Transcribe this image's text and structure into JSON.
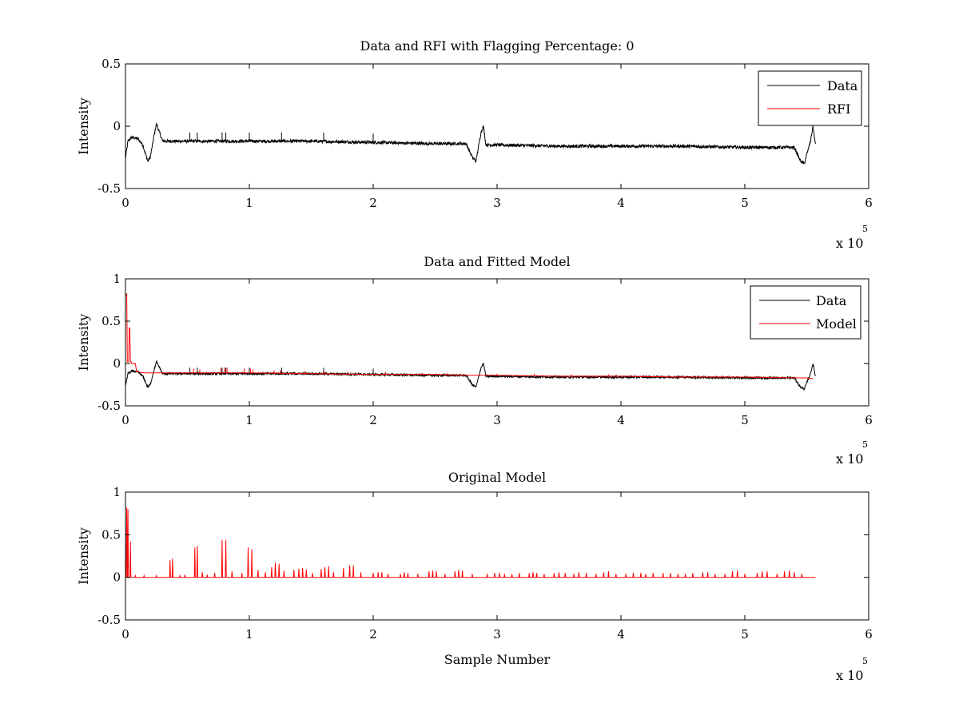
{
  "chart_data": [
    {
      "type": "line",
      "title": "Data and RFI with Flagging Percentage: 0",
      "xlabel": "",
      "ylabel": "Intensity",
      "xlim": [
        0,
        600000
      ],
      "ylim": [
        -0.5,
        0.5
      ],
      "xticks": [
        0,
        100000,
        200000,
        300000,
        400000,
        500000,
        600000
      ],
      "xtick_labels": [
        "0",
        "1",
        "2",
        "3",
        "4",
        "5",
        "6"
      ],
      "yticks": [
        -0.5,
        0,
        0.5
      ],
      "ytick_labels": [
        "-0.5",
        "0",
        "0.5"
      ],
      "x_multiplier": {
        "base": "x 10",
        "exponent": "5"
      },
      "grid": false,
      "legend": {
        "position": "top-right",
        "entries": [
          {
            "name": "Data",
            "color": "#000000"
          },
          {
            "name": "RFI",
            "color": "#ff0000"
          }
        ]
      },
      "series": [
        {
          "name": "Data",
          "color": "#000000",
          "x": [
            0,
            2000,
            5000,
            10000,
            14000,
            18000,
            20000,
            23000,
            25000,
            30000,
            60000,
            100000,
            150000,
            200000,
            250000,
            275000,
            280000,
            283000,
            287000,
            289000,
            291000,
            300000,
            350000,
            400000,
            450000,
            500000,
            540000,
            545000,
            548000,
            553000,
            555000,
            557000
          ],
          "y": [
            -0.26,
            -0.12,
            -0.09,
            -0.1,
            -0.15,
            -0.28,
            -0.25,
            -0.08,
            0.02,
            -0.12,
            -0.12,
            -0.12,
            -0.12,
            -0.13,
            -0.14,
            -0.14,
            -0.25,
            -0.28,
            -0.05,
            0,
            -0.15,
            -0.15,
            -0.16,
            -0.16,
            -0.16,
            -0.17,
            -0.17,
            -0.28,
            -0.3,
            -0.12,
            0,
            -0.15
          ],
          "noise_amplitude": 0.025
        },
        {
          "name": "RFI",
          "color": "#ff0000",
          "x": [],
          "y": []
        }
      ]
    },
    {
      "type": "line",
      "title": "Data and Fitted Model",
      "xlabel": "",
      "ylabel": "Intensity",
      "xlim": [
        0,
        600000
      ],
      "ylim": [
        -0.5,
        1
      ],
      "xticks": [
        0,
        100000,
        200000,
        300000,
        400000,
        500000,
        600000
      ],
      "xtick_labels": [
        "0",
        "1",
        "2",
        "3",
        "4",
        "5",
        "6"
      ],
      "yticks": [
        -0.5,
        0,
        0.5,
        1
      ],
      "ytick_labels": [
        "-0.5",
        "0",
        "0.5",
        "1"
      ],
      "x_multiplier": {
        "base": "x 10",
        "exponent": "5"
      },
      "grid": false,
      "legend": {
        "position": "top-right",
        "entries": [
          {
            "name": "Data",
            "color": "#000000"
          },
          {
            "name": "Model",
            "color": "#ff0000"
          }
        ]
      },
      "series": [
        {
          "name": "Data",
          "color": "#000000",
          "x": [
            0,
            2000,
            5000,
            10000,
            14000,
            18000,
            20000,
            23000,
            25000,
            30000,
            60000,
            100000,
            150000,
            200000,
            250000,
            275000,
            280000,
            283000,
            287000,
            289000,
            291000,
            300000,
            350000,
            400000,
            450000,
            500000,
            540000,
            545000,
            548000,
            553000,
            555000,
            557000
          ],
          "y": [
            -0.26,
            -0.12,
            -0.09,
            -0.1,
            -0.15,
            -0.28,
            -0.25,
            -0.08,
            0.02,
            -0.12,
            -0.12,
            -0.12,
            -0.12,
            -0.13,
            -0.14,
            -0.14,
            -0.25,
            -0.28,
            -0.05,
            0,
            -0.15,
            -0.15,
            -0.16,
            -0.16,
            -0.16,
            -0.17,
            -0.17,
            -0.28,
            -0.3,
            -0.12,
            0,
            -0.15
          ],
          "noise_amplitude": 0.025
        },
        {
          "name": "Model",
          "color": "#ff0000",
          "x": [
            0,
            1000,
            1500,
            2500,
            3000,
            3500,
            4000,
            4500,
            5000,
            8000,
            9000,
            10000,
            15000,
            25000,
            50000,
            100000,
            150000,
            200000,
            250000,
            280000,
            290000,
            300000,
            350000,
            400000,
            450000,
            500000,
            545000,
            550000,
            555000
          ],
          "y": [
            0.8,
            0.82,
            0.02,
            0.02,
            0.42,
            0.42,
            0.02,
            0.02,
            0.0,
            0.0,
            -0.1,
            -0.1,
            -0.11,
            -0.11,
            -0.11,
            -0.11,
            -0.12,
            -0.13,
            -0.13,
            -0.14,
            -0.14,
            -0.14,
            -0.15,
            -0.15,
            -0.16,
            -0.16,
            -0.17,
            -0.17,
            -0.18
          ],
          "spikes_x": [
            55000,
            60000,
            77000,
            80000,
            82000,
            96000,
            101000,
            103000,
            120000,
            125000,
            145000,
            160000,
            180000,
            210000,
            240000,
            260000,
            300000,
            330000,
            360000,
            390000,
            420000,
            450000,
            480000,
            510000,
            540000
          ],
          "spikes_y": [
            -0.06,
            -0.07,
            -0.05,
            -0.05,
            -0.05,
            -0.06,
            -0.06,
            -0.07,
            -0.08,
            -0.08,
            -0.09,
            -0.09,
            -0.1,
            -0.1,
            -0.11,
            -0.11,
            -0.12,
            -0.12,
            -0.13,
            -0.13,
            -0.14,
            -0.14,
            -0.15,
            -0.15,
            -0.16
          ]
        }
      ]
    },
    {
      "type": "line",
      "title": "Original Model",
      "xlabel": "Sample Number",
      "ylabel": "Intensity",
      "xlim": [
        0,
        600000
      ],
      "ylim": [
        -0.5,
        1
      ],
      "xticks": [
        0,
        100000,
        200000,
        300000,
        400000,
        500000,
        600000
      ],
      "xtick_labels": [
        "0",
        "1",
        "2",
        "3",
        "4",
        "5",
        "6"
      ],
      "yticks": [
        -0.5,
        0,
        0.5,
        1
      ],
      "ytick_labels": [
        "-0.5",
        "0",
        "0.5",
        "1"
      ],
      "x_multiplier": {
        "base": "x 10",
        "exponent": "5"
      },
      "grid": false,
      "legend": null,
      "series": [
        {
          "name": "",
          "color": "#ff0000",
          "baseline": 0,
          "x_end": 557000,
          "spikes_x": [
            1000,
            2000,
            4000,
            8000,
            15000,
            25000,
            36000,
            38000,
            44000,
            48000,
            56000,
            58000,
            62000,
            66000,
            72000,
            78000,
            81000,
            86000,
            94000,
            99000,
            102000,
            107000,
            113000,
            118000,
            121000,
            124000,
            128000,
            136000,
            140000,
            143000,
            146000,
            151000,
            158000,
            161000,
            164000,
            168000,
            176000,
            181000,
            184000,
            190000,
            200000,
            204000,
            207000,
            212000,
            222000,
            225000,
            228000,
            236000,
            245000,
            248000,
            251000,
            258000,
            266000,
            269000,
            272000,
            280000,
            292000,
            298000,
            302000,
            306000,
            312000,
            318000,
            326000,
            329000,
            332000,
            338000,
            346000,
            350000,
            355000,
            362000,
            366000,
            372000,
            380000,
            386000,
            390000,
            396000,
            404000,
            410000,
            416000,
            420000,
            426000,
            434000,
            440000,
            446000,
            452000,
            458000,
            466000,
            470000,
            476000,
            484000,
            490000,
            494000,
            500000,
            510000,
            514000,
            518000,
            526000,
            532000,
            536000,
            540000,
            546000
          ],
          "spikes_y": [
            0.82,
            0.8,
            0.42,
            0.02,
            0.02,
            0.02,
            0.2,
            0.22,
            0.02,
            0.03,
            0.35,
            0.37,
            0.06,
            0.03,
            0.05,
            0.44,
            0.44,
            0.07,
            0.05,
            0.35,
            0.33,
            0.09,
            0.06,
            0.12,
            0.17,
            0.16,
            0.08,
            0.09,
            0.1,
            0.11,
            0.09,
            0.05,
            0.1,
            0.12,
            0.13,
            0.06,
            0.11,
            0.14,
            0.14,
            0.06,
            0.05,
            0.06,
            0.06,
            0.04,
            0.04,
            0.06,
            0.05,
            0.04,
            0.07,
            0.08,
            0.07,
            0.04,
            0.07,
            0.09,
            0.08,
            0.04,
            0.04,
            0.05,
            0.05,
            0.04,
            0.04,
            0.05,
            0.05,
            0.06,
            0.05,
            0.04,
            0.05,
            0.06,
            0.05,
            0.04,
            0.06,
            0.05,
            0.04,
            0.06,
            0.07,
            0.04,
            0.04,
            0.05,
            0.05,
            0.04,
            0.05,
            0.05,
            0.05,
            0.04,
            0.04,
            0.05,
            0.06,
            0.06,
            0.04,
            0.04,
            0.07,
            0.08,
            0.04,
            0.05,
            0.07,
            0.07,
            0.04,
            0.07,
            0.08,
            0.06,
            0.04
          ]
        }
      ]
    }
  ]
}
